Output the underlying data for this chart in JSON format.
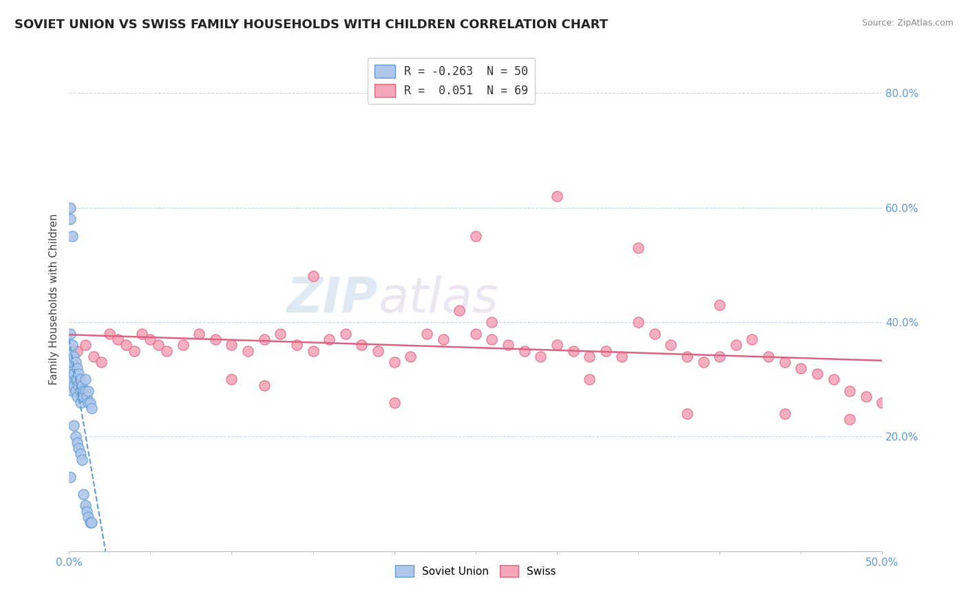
{
  "title": "SOVIET UNION VS SWISS FAMILY HOUSEHOLDS WITH CHILDREN CORRELATION CHART",
  "source": "Source: ZipAtlas.com",
  "ylabel": "Family Households with Children",
  "yaxis_ticks": [
    "20.0%",
    "40.0%",
    "60.0%",
    "80.0%"
  ],
  "yaxis_tick_vals": [
    0.2,
    0.4,
    0.6,
    0.8
  ],
  "xlim": [
    0.0,
    0.5
  ],
  "ylim": [
    0.0,
    0.88
  ],
  "legend_line1": "R = -0.263  N = 50",
  "legend_line2": "R =  0.051  N = 69",
  "soviet_color": "#aec6e8",
  "swiss_color": "#f4a7b9",
  "soviet_edge": "#5b9bd5",
  "swiss_edge": "#e06080",
  "trendline_soviet_color": "#5b9bd5",
  "trendline_swiss_color": "#e06080",
  "background_color": "#ffffff",
  "grid_color": "#c8d4e8",
  "watermark_zip": "ZIP",
  "watermark_atlas": "atlas",
  "soviet_x": [
    0.001,
    0.001,
    0.001,
    0.001,
    0.001,
    0.002,
    0.002,
    0.002,
    0.002,
    0.003,
    0.003,
    0.003,
    0.004,
    0.004,
    0.004,
    0.005,
    0.005,
    0.005,
    0.006,
    0.006,
    0.007,
    0.007,
    0.007,
    0.008,
    0.008,
    0.009,
    0.009,
    0.01,
    0.01,
    0.011,
    0.012,
    0.012,
    0.013,
    0.014,
    0.001,
    0.002,
    0.003,
    0.004,
    0.005,
    0.006,
    0.007,
    0.008,
    0.009,
    0.01,
    0.011,
    0.012,
    0.013,
    0.014,
    0.001,
    0.001
  ],
  "soviet_y": [
    0.38,
    0.35,
    0.33,
    0.31,
    0.29,
    0.36,
    0.33,
    0.3,
    0.28,
    0.34,
    0.31,
    0.29,
    0.33,
    0.3,
    0.28,
    0.32,
    0.3,
    0.27,
    0.31,
    0.29,
    0.3,
    0.28,
    0.26,
    0.29,
    0.27,
    0.28,
    0.27,
    0.3,
    0.28,
    0.27,
    0.28,
    0.26,
    0.26,
    0.25,
    0.58,
    0.55,
    0.22,
    0.2,
    0.19,
    0.18,
    0.17,
    0.16,
    0.1,
    0.08,
    0.07,
    0.06,
    0.05,
    0.05,
    0.6,
    0.13
  ],
  "swiss_x": [
    0.005,
    0.01,
    0.015,
    0.02,
    0.025,
    0.03,
    0.035,
    0.04,
    0.045,
    0.05,
    0.055,
    0.06,
    0.07,
    0.08,
    0.09,
    0.1,
    0.11,
    0.12,
    0.13,
    0.14,
    0.15,
    0.16,
    0.17,
    0.18,
    0.19,
    0.2,
    0.21,
    0.22,
    0.23,
    0.24,
    0.25,
    0.26,
    0.27,
    0.28,
    0.29,
    0.3,
    0.31,
    0.32,
    0.33,
    0.34,
    0.35,
    0.36,
    0.37,
    0.38,
    0.39,
    0.4,
    0.41,
    0.42,
    0.43,
    0.44,
    0.45,
    0.46,
    0.47,
    0.48,
    0.49,
    0.5,
    0.25,
    0.3,
    0.35,
    0.4,
    0.15,
    0.1,
    0.2,
    0.32,
    0.38,
    0.44,
    0.26,
    0.12,
    0.48
  ],
  "swiss_y": [
    0.35,
    0.36,
    0.34,
    0.33,
    0.38,
    0.37,
    0.36,
    0.35,
    0.38,
    0.37,
    0.36,
    0.35,
    0.36,
    0.38,
    0.37,
    0.36,
    0.35,
    0.37,
    0.38,
    0.36,
    0.35,
    0.37,
    0.38,
    0.36,
    0.35,
    0.33,
    0.34,
    0.38,
    0.37,
    0.42,
    0.38,
    0.37,
    0.36,
    0.35,
    0.34,
    0.36,
    0.35,
    0.34,
    0.35,
    0.34,
    0.4,
    0.38,
    0.36,
    0.34,
    0.33,
    0.34,
    0.36,
    0.37,
    0.34,
    0.33,
    0.32,
    0.31,
    0.3,
    0.28,
    0.27,
    0.26,
    0.55,
    0.62,
    0.53,
    0.43,
    0.48,
    0.3,
    0.26,
    0.3,
    0.24,
    0.24,
    0.4,
    0.29,
    0.23
  ]
}
